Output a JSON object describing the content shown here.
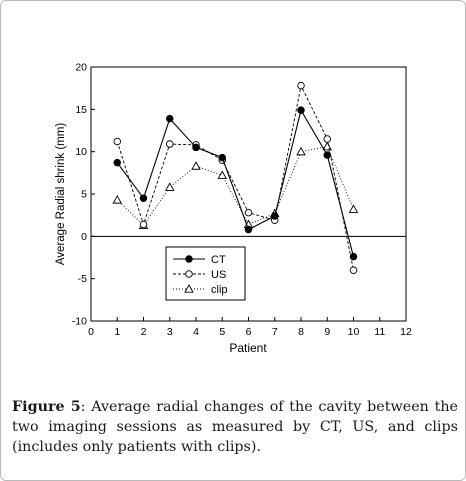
{
  "caption": {
    "label": "Figure 5",
    "text": ": Average radial changes of the cavity between the two imaging sessions as measured by CT, US, and clips (includes only patients with clips)."
  },
  "chart_data": {
    "type": "line",
    "title": "",
    "xlabel": "Patient",
    "ylabel": "Average Radial shrink (mm)",
    "xlim": [
      0,
      12
    ],
    "ylim": [
      -10,
      20
    ],
    "xticks": [
      0,
      1,
      2,
      3,
      4,
      5,
      6,
      7,
      8,
      9,
      10,
      11,
      12
    ],
    "yticks": [
      -10,
      -5,
      0,
      5,
      10,
      15,
      20
    ],
    "grid": false,
    "zero_line": true,
    "legend_position": "lower-left",
    "x": [
      1,
      2,
      3,
      4,
      5,
      6,
      7,
      8,
      9,
      10
    ],
    "series": [
      {
        "name": "CT",
        "marker": "filled-circle",
        "line": "solid",
        "color": "#000000",
        "values": [
          8.7,
          4.5,
          13.9,
          10.5,
          9.3,
          0.8,
          2.4,
          14.9,
          9.6,
          -2.4
        ]
      },
      {
        "name": "US",
        "marker": "open-circle",
        "line": "dashed",
        "color": "#000000",
        "values": [
          11.2,
          1.4,
          10.9,
          10.8,
          9.0,
          2.8,
          1.9,
          17.8,
          11.5,
          -4.0
        ]
      },
      {
        "name": "clip",
        "marker": "open-triangle",
        "line": "dotted",
        "color": "#000000",
        "values": [
          4.3,
          1.3,
          5.8,
          8.3,
          7.2,
          1.4,
          2.7,
          10.0,
          10.6,
          3.2
        ]
      }
    ]
  }
}
